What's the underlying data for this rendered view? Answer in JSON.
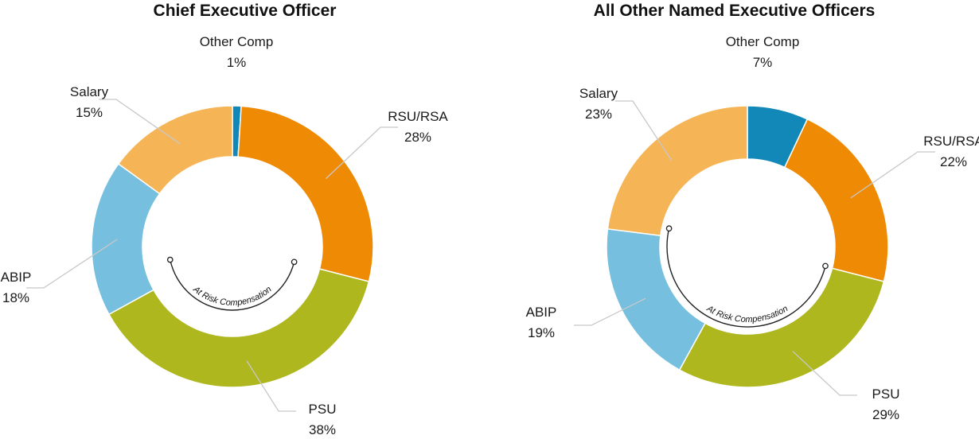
{
  "colors": {
    "Other Comp": "#1288b8",
    "RSU/RSA": "#ef8a05",
    "PSU": "#aeb71d",
    "ABIP": "#76bfde",
    "Salary": "#f5b557",
    "leader": "#c8c8c8",
    "bracket": "#222222"
  },
  "chart_data": [
    {
      "type": "pie",
      "variant": "donut",
      "title": "Chief Executive Officer",
      "annotation": "At Risk Compensation",
      "slices": [
        {
          "label": "Other Comp",
          "pct_label": "1%",
          "value": 1
        },
        {
          "label": "RSU/RSA",
          "pct_label": "28%",
          "value": 28
        },
        {
          "label": "PSU",
          "pct_label": "38%",
          "value": 38
        },
        {
          "label": "ABIP",
          "pct_label": "18%",
          "value": 18
        },
        {
          "label": "Salary",
          "pct_label": "15%",
          "value": 15
        }
      ]
    },
    {
      "type": "pie",
      "variant": "donut",
      "title": "All Other Named Executive Officers",
      "annotation": "At Risk Compensation",
      "slices": [
        {
          "label": "Other Comp",
          "pct_label": "7%",
          "value": 7
        },
        {
          "label": "RSU/RSA",
          "pct_label": "22%",
          "value": 22
        },
        {
          "label": "PSU",
          "pct_label": "29%",
          "value": 29
        },
        {
          "label": "ABIP",
          "pct_label": "19%",
          "value": 19
        },
        {
          "label": "Salary",
          "pct_label": "23%",
          "value": 23
        }
      ]
    }
  ]
}
